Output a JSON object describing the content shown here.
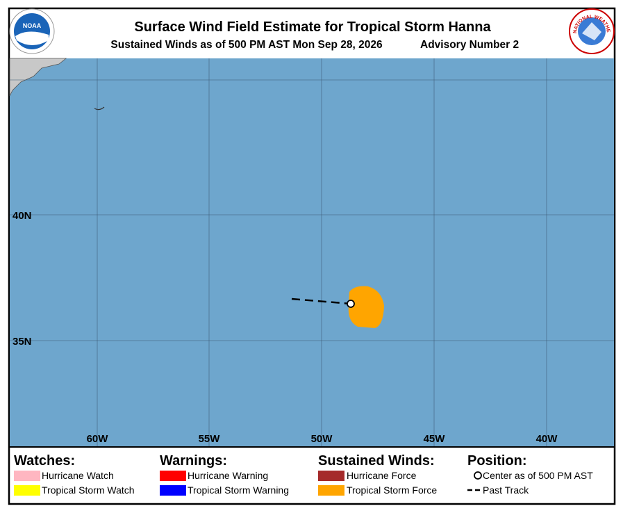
{
  "header": {
    "title": "Surface Wind Field Estimate for Tropical Storm Hanna",
    "subtitle": "Sustained Winds as of 500 PM AST Mon Sep 28, 2026",
    "advisory": "Advisory Number 2",
    "left_logo": "NOAA",
    "right_logo": "NATIONAL WEATHER SERVICE"
  },
  "map": {
    "latitude_labels": [
      "40N",
      "35N"
    ],
    "longitude_labels": [
      "60W",
      "55W",
      "50W",
      "45W",
      "40W"
    ]
  },
  "legend": {
    "watches": {
      "title": "Watches:",
      "items": [
        "Hurricane Watch",
        "Tropical Storm Watch"
      ]
    },
    "warnings": {
      "title": "Warnings:",
      "items": [
        "Hurricane Warning",
        "Tropical Storm Warning"
      ]
    },
    "winds": {
      "title": "Sustained Winds:",
      "items": [
        "Hurricane Force",
        "Tropical Storm Force"
      ]
    },
    "position": {
      "title": "Position:",
      "items": [
        "Center as of 500 PM AST",
        "Past Track"
      ]
    }
  }
}
